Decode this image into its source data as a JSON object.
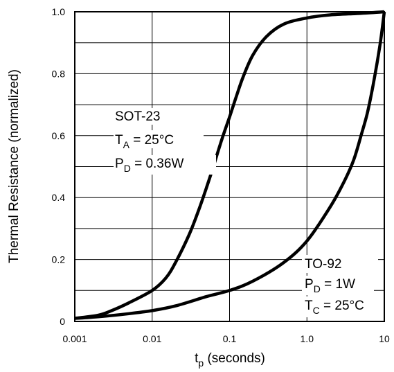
{
  "chart_data": {
    "type": "line",
    "xlabel": {
      "main": "t",
      "sub": "p",
      "rest": " (seconds)"
    },
    "ylabel": "Thermal Resistance (normalized)",
    "xscale": "log",
    "xlim": [
      0.001,
      10
    ],
    "ylim": [
      0,
      1.0
    ],
    "grid": true,
    "x_ticks": [
      {
        "value": 0.001,
        "label": "0.001"
      },
      {
        "value": 0.01,
        "label": "0.01"
      },
      {
        "value": 0.1,
        "label": "0.1"
      },
      {
        "value": 1,
        "label": "1.0"
      },
      {
        "value": 10,
        "label": "10"
      }
    ],
    "y_ticks": [
      {
        "value": 0,
        "label": "0"
      },
      {
        "value": 0.2,
        "label": "0.2"
      },
      {
        "value": 0.4,
        "label": "0.4"
      },
      {
        "value": 0.6,
        "label": "0.6"
      },
      {
        "value": 0.8,
        "label": "0.8"
      },
      {
        "value": 1.0,
        "label": "1.0"
      }
    ],
    "series": [
      {
        "points": [
          [
            0.001,
            0.01
          ],
          [
            0.002,
            0.02
          ],
          [
            0.003,
            0.035
          ],
          [
            0.005,
            0.06
          ],
          [
            0.01,
            0.1
          ],
          [
            0.015,
            0.14
          ],
          [
            0.02,
            0.19
          ],
          [
            0.03,
            0.28
          ],
          [
            0.04,
            0.36
          ],
          [
            0.05,
            0.43
          ],
          [
            0.06,
            0.49
          ],
          [
            0.08,
            0.59
          ],
          [
            0.1,
            0.66
          ],
          [
            0.12,
            0.72
          ],
          [
            0.15,
            0.79
          ],
          [
            0.2,
            0.86
          ],
          [
            0.3,
            0.92
          ],
          [
            0.5,
            0.96
          ],
          [
            1.0,
            0.98
          ],
          [
            2.0,
            0.99
          ],
          [
            5.0,
            0.995
          ],
          [
            10,
            1.0
          ]
        ]
      },
      {
        "points": [
          [
            0.001,
            0.01
          ],
          [
            0.002,
            0.015
          ],
          [
            0.005,
            0.025
          ],
          [
            0.01,
            0.035
          ],
          [
            0.02,
            0.05
          ],
          [
            0.05,
            0.08
          ],
          [
            0.1,
            0.1
          ],
          [
            0.2,
            0.13
          ],
          [
            0.5,
            0.19
          ],
          [
            1.0,
            0.26
          ],
          [
            2.0,
            0.37
          ],
          [
            3.0,
            0.45
          ],
          [
            4.0,
            0.52
          ],
          [
            5.0,
            0.6
          ],
          [
            6.0,
            0.67
          ],
          [
            7.0,
            0.75
          ],
          [
            8.0,
            0.83
          ],
          [
            9.0,
            0.91
          ],
          [
            10,
            1.0
          ]
        ]
      }
    ],
    "annotations": [
      {
        "name": "sot23",
        "lines": [
          {
            "main": "SOT-23",
            "sub": "",
            "rest": ""
          },
          {
            "main": "T",
            "sub": "A",
            "rest": " = 25°C"
          },
          {
            "main": "P",
            "sub": "D",
            "rest": " = 0.36W"
          }
        ]
      },
      {
        "name": "to92",
        "lines": [
          {
            "main": "TO-92",
            "sub": "",
            "rest": ""
          },
          {
            "main": "P",
            "sub": "D",
            "rest": " = 1W"
          },
          {
            "main": "T",
            "sub": "C",
            "rest": " = 25°C"
          }
        ]
      }
    ]
  }
}
